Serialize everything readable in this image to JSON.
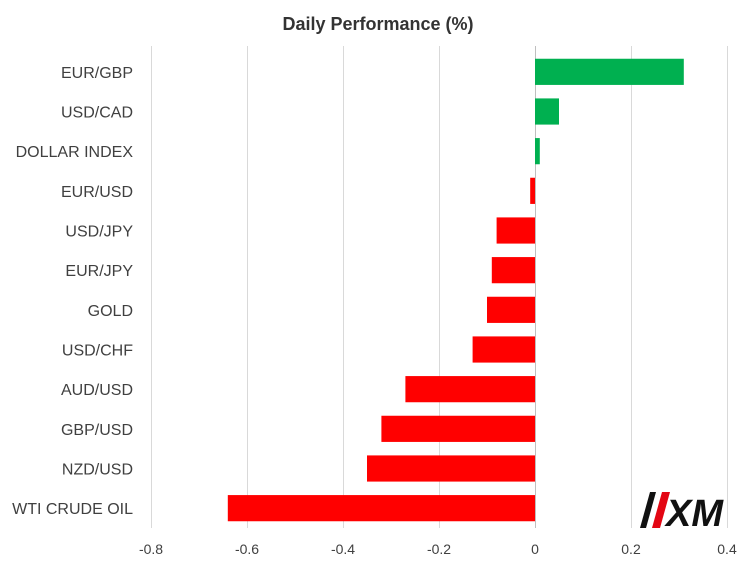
{
  "chart_data": {
    "type": "bar",
    "orientation": "horizontal",
    "title": "Daily Performance (%)",
    "xlabel": "",
    "ylabel": "",
    "categories": [
      "EUR/GBP",
      "USD/CAD",
      "DOLLAR INDEX",
      "EUR/USD",
      "USD/JPY",
      "EUR/JPY",
      "GOLD",
      "USD/CHF",
      "AUD/USD",
      "GBP/USD",
      "NZD/USD",
      "WTI CRUDE OIL"
    ],
    "values": [
      0.31,
      0.05,
      0.01,
      -0.01,
      -0.08,
      -0.09,
      -0.1,
      -0.13,
      -0.27,
      -0.32,
      -0.35,
      -0.64
    ],
    "xlim": [
      -0.8,
      0.4
    ],
    "xticks": [
      -0.8,
      -0.6,
      -0.4,
      -0.2,
      0,
      0.2,
      0.4
    ],
    "xtick_labels": [
      "-0.8",
      "-0.6",
      "-0.4",
      "-0.2",
      "0",
      "0.2",
      "0.4"
    ],
    "grid": "vertical",
    "legend": "none",
    "colors": {
      "positive": "#00b050",
      "negative": "#ff0000",
      "grid": "#d9d9d9"
    }
  },
  "logo": {
    "text": "XM",
    "icon": "xm-logo-icon",
    "accent": "#e30613"
  }
}
